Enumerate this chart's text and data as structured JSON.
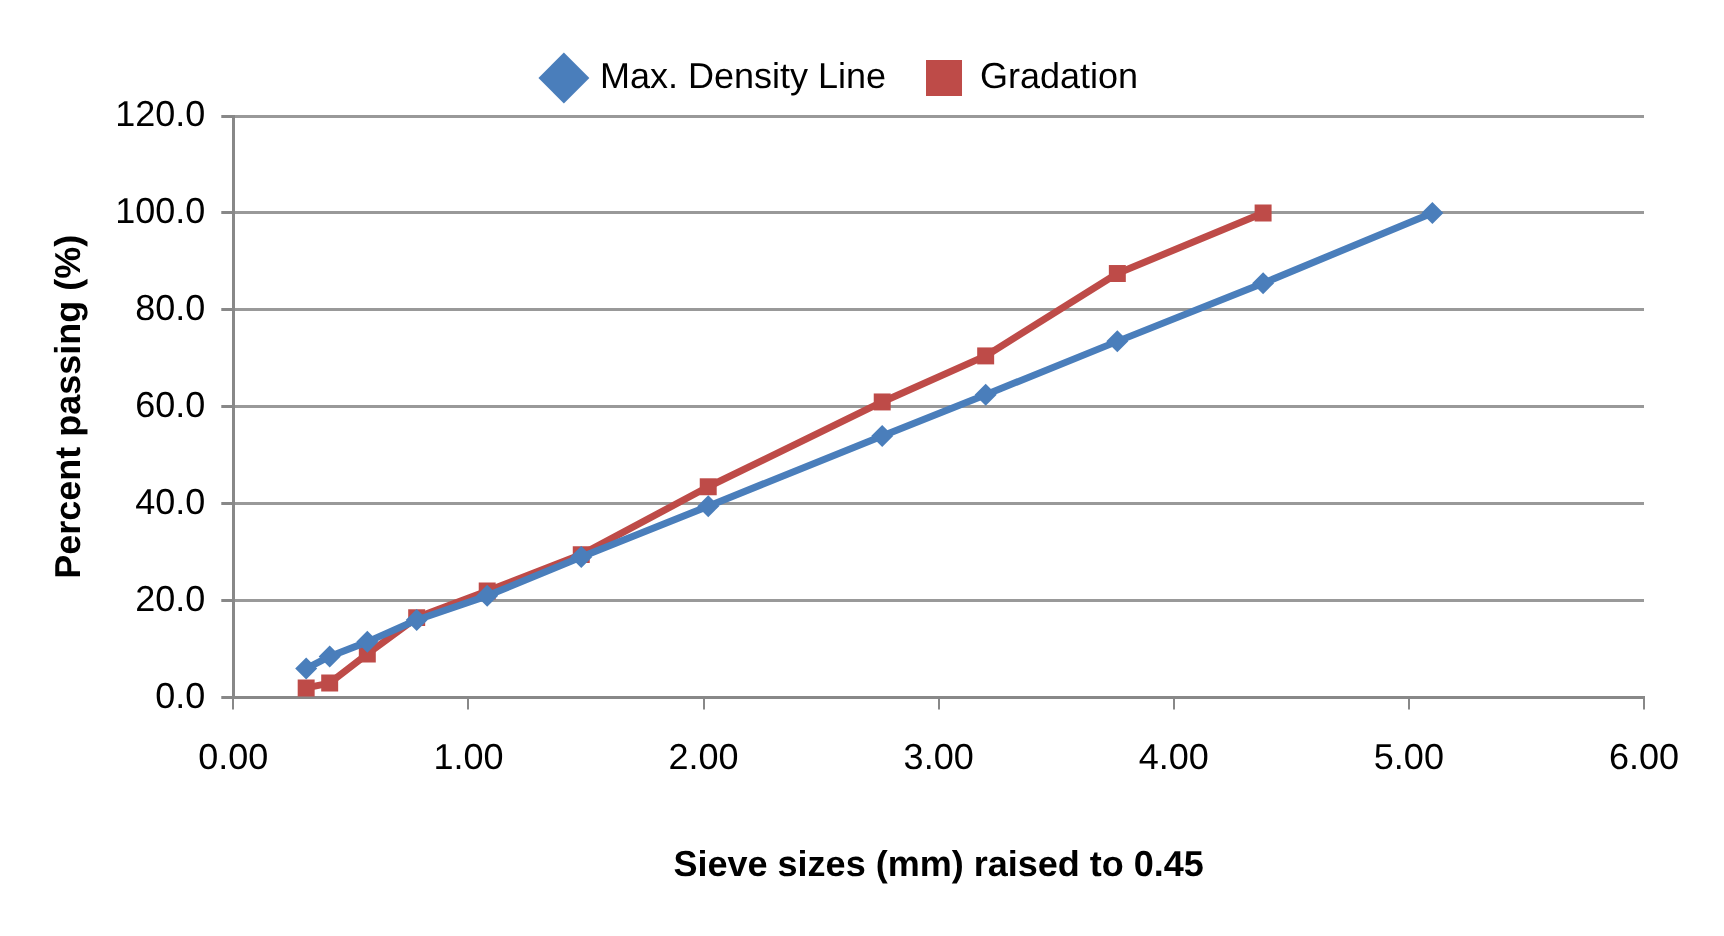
{
  "chart_data": {
    "type": "line",
    "xlabel": "Sieve sizes (mm) raised to 0.45",
    "ylabel": "Percent passing (%)",
    "xlim": [
      0,
      6
    ],
    "xticks": [
      {
        "value": 0,
        "label": "0.00"
      },
      {
        "value": 1,
        "label": "1.00"
      },
      {
        "value": 2,
        "label": "2.00"
      },
      {
        "value": 3,
        "label": "3.00"
      },
      {
        "value": 4,
        "label": "4.00"
      },
      {
        "value": 5,
        "label": "5.00"
      },
      {
        "value": 6,
        "label": "6.00"
      }
    ],
    "ylim": [
      0,
      120
    ],
    "yticks": [
      {
        "value": 0,
        "label": "0.0"
      },
      {
        "value": 20,
        "label": "20.0"
      },
      {
        "value": 40,
        "label": "40.0"
      },
      {
        "value": 60,
        "label": "60.0"
      },
      {
        "value": 80,
        "label": "80.0"
      },
      {
        "value": 100,
        "label": "100.0"
      },
      {
        "value": 120,
        "label": "120.0"
      }
    ],
    "grid": "y",
    "legend": "top",
    "series": [
      {
        "name": "Max. Density Line",
        "color": "#4a7ebb",
        "marker": "diamond",
        "x": [
          0.31,
          0.41,
          0.57,
          0.78,
          1.08,
          1.48,
          2.02,
          2.76,
          3.2,
          3.76,
          4.38,
          5.1
        ],
        "values": [
          6,
          8.5,
          11.5,
          16,
          21,
          29,
          39.5,
          54,
          62.5,
          73.5,
          85.5,
          100
        ]
      },
      {
        "name": "Gradation",
        "color": "#be4b48",
        "marker": "square",
        "x": [
          0.31,
          0.41,
          0.57,
          0.78,
          1.08,
          1.48,
          2.02,
          2.76,
          3.2,
          3.76,
          4.38
        ],
        "values": [
          2,
          3,
          9,
          16.5,
          22,
          29.5,
          43.5,
          61,
          70.5,
          87.5,
          100
        ]
      }
    ]
  }
}
